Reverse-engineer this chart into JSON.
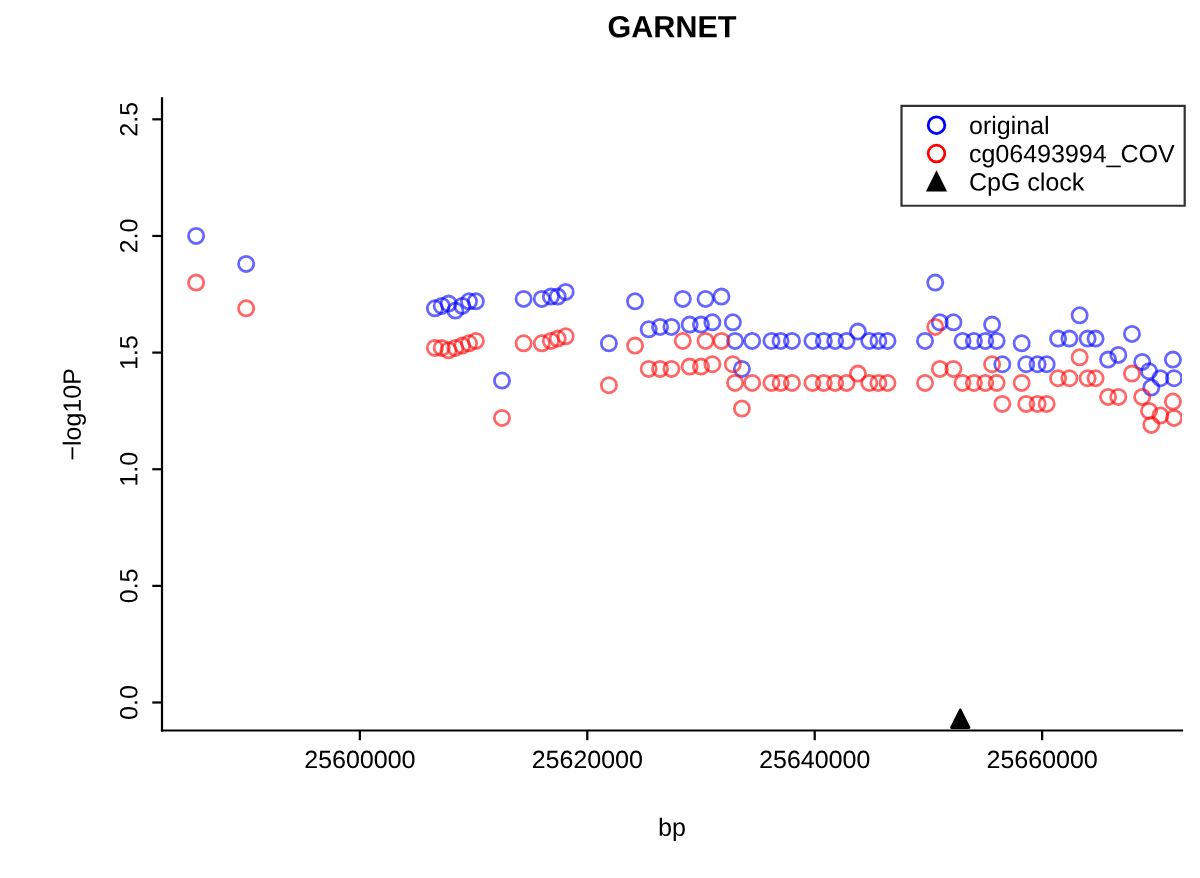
{
  "chart_data": {
    "type": "scatter",
    "title": "GARNET",
    "xlabel": "bp",
    "ylabel": "−log10P",
    "xlim": [
      25582600,
      25672300
    ],
    "ylim": [
      -0.12,
      2.59
    ],
    "xticks": [
      25600000,
      25620000,
      25640000,
      25660000
    ],
    "yticks": [
      {
        "value": 0,
        "label": "0.0"
      },
      {
        "value": 0.5,
        "label": "0.5"
      },
      {
        "value": 1,
        "label": "1.0"
      },
      {
        "value": 1.5,
        "label": "1.5"
      },
      {
        "value": 2,
        "label": "2.0"
      },
      {
        "value": 2.5,
        "label": "2.5"
      }
    ],
    "grid": false,
    "legend": "top right",
    "series": [
      {
        "name": "original",
        "color": "#0000ff",
        "marker": "circle",
        "x": [
          25585600,
          25590000,
          25606600,
          25607200,
          25607800,
          25608400,
          25609000,
          25609600,
          25610200,
          25612500,
          25614400,
          25616000,
          25616800,
          25617400,
          25618100,
          25621900,
          25624200,
          25625400,
          25626400,
          25627400,
          25628400,
          25629000,
          25630000,
          25630400,
          25631000,
          25631800,
          25632800,
          25633000,
          25633600,
          25634500,
          25636200,
          25637000,
          25638000,
          25639800,
          25640800,
          25641800,
          25642800,
          25643800,
          25644800,
          25645600,
          25646400,
          25649700,
          25650600,
          25651000,
          25652200,
          25653000,
          25654000,
          25655000,
          25655600,
          25656000,
          25656500,
          25658200,
          25658600,
          25659600,
          25660400,
          25661400,
          25662400,
          25663300,
          25664000,
          25664700,
          25665800,
          25666700,
          25667900,
          25668800,
          25669400,
          25669600,
          25670400,
          25671500,
          25671600
        ],
        "values": [
          2.0,
          1.88,
          1.69,
          1.7,
          1.71,
          1.68,
          1.7,
          1.72,
          1.72,
          1.38,
          1.73,
          1.73,
          1.74,
          1.74,
          1.76,
          1.54,
          1.72,
          1.6,
          1.61,
          1.61,
          1.73,
          1.62,
          1.62,
          1.73,
          1.63,
          1.74,
          1.63,
          1.55,
          1.43,
          1.55,
          1.55,
          1.55,
          1.55,
          1.55,
          1.55,
          1.55,
          1.55,
          1.59,
          1.55,
          1.55,
          1.55,
          1.55,
          1.8,
          1.63,
          1.63,
          1.55,
          1.55,
          1.55,
          1.62,
          1.55,
          1.45,
          1.54,
          1.45,
          1.45,
          1.45,
          1.56,
          1.56,
          1.66,
          1.56,
          1.56,
          1.47,
          1.49,
          1.58,
          1.46,
          1.42,
          1.35,
          1.39,
          1.47,
          1.39
        ]
      },
      {
        "name": "cg06493994_COV",
        "color": "#ff0000",
        "marker": "circle",
        "x": [
          25585600,
          25590000,
          25606600,
          25607200,
          25607800,
          25608400,
          25609000,
          25609600,
          25610200,
          25612500,
          25614400,
          25616000,
          25616800,
          25617400,
          25618100,
          25621900,
          25624200,
          25625400,
          25626400,
          25627400,
          25628400,
          25629000,
          25630000,
          25630400,
          25631000,
          25631800,
          25632800,
          25633000,
          25633600,
          25634500,
          25636200,
          25637000,
          25638000,
          25639800,
          25640800,
          25641800,
          25642800,
          25643800,
          25644800,
          25645600,
          25646400,
          25649700,
          25650600,
          25651000,
          25652200,
          25653000,
          25654000,
          25655000,
          25655600,
          25656000,
          25656500,
          25658200,
          25658600,
          25659600,
          25660400,
          25661400,
          25662400,
          25663300,
          25664000,
          25664700,
          25665800,
          25666700,
          25667900,
          25668800,
          25669400,
          25669600,
          25670400,
          25671500,
          25671600
        ],
        "values": [
          1.8,
          1.69,
          1.52,
          1.52,
          1.51,
          1.52,
          1.53,
          1.54,
          1.55,
          1.22,
          1.54,
          1.54,
          1.55,
          1.56,
          1.57,
          1.36,
          1.53,
          1.43,
          1.43,
          1.43,
          1.55,
          1.44,
          1.44,
          1.55,
          1.45,
          1.55,
          1.45,
          1.37,
          1.26,
          1.37,
          1.37,
          1.37,
          1.37,
          1.37,
          1.37,
          1.37,
          1.37,
          1.41,
          1.37,
          1.37,
          1.37,
          1.37,
          1.61,
          1.43,
          1.43,
          1.37,
          1.37,
          1.37,
          1.45,
          1.37,
          1.28,
          1.37,
          1.28,
          1.28,
          1.28,
          1.39,
          1.39,
          1.48,
          1.39,
          1.39,
          1.31,
          1.31,
          1.41,
          1.31,
          1.25,
          1.19,
          1.23,
          1.29,
          1.22
        ]
      },
      {
        "name": "CpG clock",
        "color": "#000000",
        "marker": "triangle",
        "x": [
          25652800
        ],
        "values": [
          -0.07
        ]
      }
    ]
  }
}
